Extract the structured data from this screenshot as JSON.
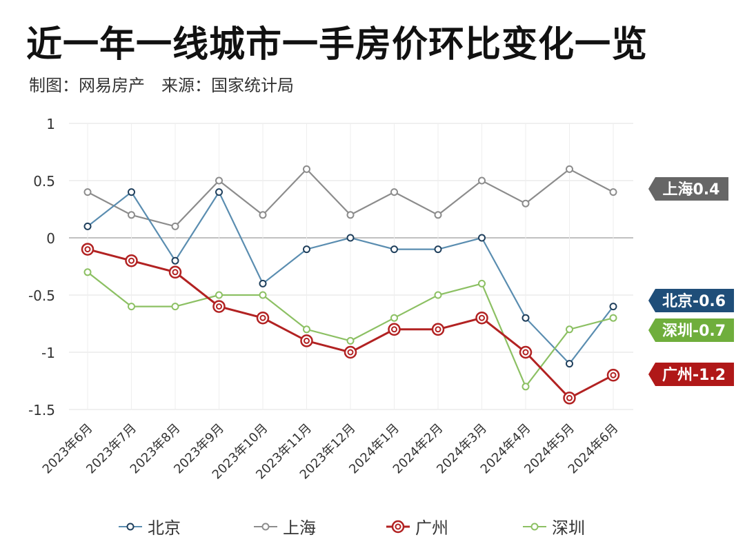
{
  "title": "近一年一线城市一手房价环比变化一览",
  "subtitle": "制图：网易房产　来源：国家统计局",
  "chart_data": {
    "type": "line",
    "categories": [
      "2023年6月",
      "2023年7月",
      "2023年8月",
      "2023年9月",
      "2023年10月",
      "2023年11月",
      "2023年12月",
      "2024年1月",
      "2024年2月",
      "2024年3月",
      "2024年4月",
      "2024年5月",
      "2024年6月"
    ],
    "ylim": [
      -1.5,
      1
    ],
    "yticks": [
      1,
      0.5,
      0,
      -0.5,
      -1,
      -1.5
    ],
    "ytick_labels": [
      "1",
      "0.5",
      "0",
      "-0.5",
      "-1",
      "-1.5"
    ],
    "grid": true,
    "legend": "bottom",
    "series": [
      {
        "name": "北京",
        "color": "#5a8db0",
        "values": [
          0.1,
          0.4,
          -0.2,
          0.4,
          -0.4,
          -0.1,
          0,
          -0.1,
          -0.1,
          0,
          -0.7,
          -1.1,
          -0.6
        ],
        "end_label": "北京-0.6",
        "label_bg": "#1f4e79"
      },
      {
        "name": "上海",
        "color": "#8c8c8c",
        "values": [
          0.4,
          0.2,
          0.1,
          0.5,
          0.2,
          0.6,
          0.2,
          0.4,
          0.2,
          0.5,
          0.3,
          0.6,
          0.4
        ],
        "end_label": "上海0.4",
        "label_bg": "#666666"
      },
      {
        "name": "广州",
        "color": "#b22222",
        "values": [
          -0.1,
          -0.2,
          -0.3,
          -0.6,
          -0.7,
          -0.9,
          -1,
          -0.8,
          -0.8,
          -0.7,
          -1,
          -1.4,
          -1.2
        ],
        "end_label": "广州-1.2",
        "label_bg": "#b01818"
      },
      {
        "name": "深圳",
        "color": "#8cc063",
        "values": [
          -0.3,
          -0.6,
          -0.6,
          -0.5,
          -0.5,
          -0.8,
          -0.9,
          -0.7,
          -0.5,
          -0.4,
          -1.3,
          -0.8,
          -0.7
        ],
        "end_label": "深圳-0.7",
        "label_bg": "#6fae3c"
      }
    ]
  }
}
